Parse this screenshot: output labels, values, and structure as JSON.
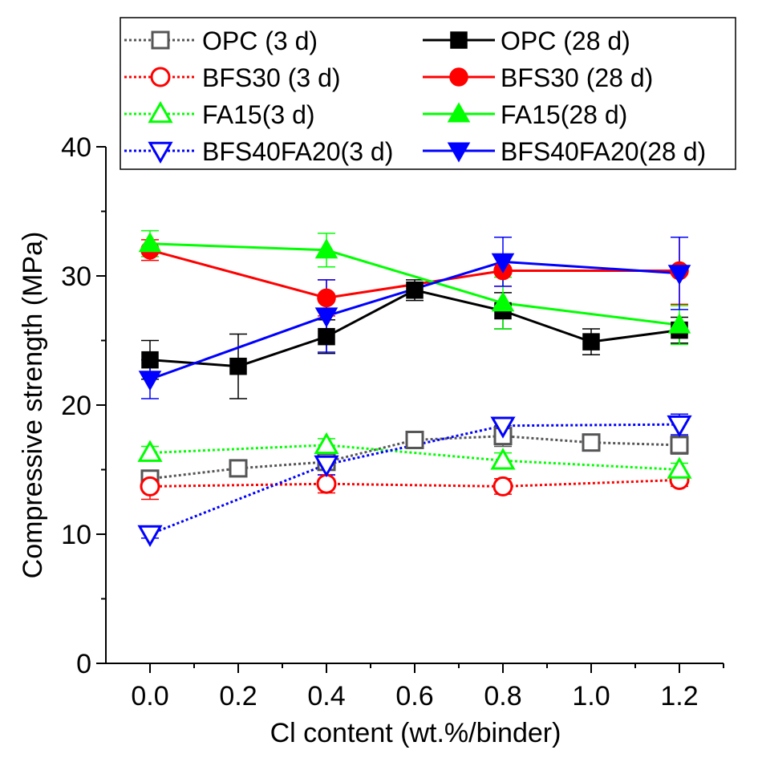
{
  "chart_data": {
    "type": "line",
    "xlabel": "Cl content (wt.%/binder)",
    "ylabel": "Compressive strength (MPa)",
    "xlim": [
      -0.1,
      1.3
    ],
    "ylim": [
      0,
      40
    ],
    "xticks": [
      0.0,
      0.2,
      0.4,
      0.6,
      0.8,
      1.0,
      1.2
    ],
    "xtick_labels": [
      "0.0",
      "0.2",
      "0.4",
      "0.6",
      "0.8",
      "1.0",
      "1.2"
    ],
    "yticks": [
      0,
      10,
      20,
      30,
      40
    ],
    "ytick_labels": [
      "0",
      "10",
      "20",
      "30",
      "40"
    ],
    "grid": false,
    "legend_position": "top-right",
    "series": [
      {
        "name": "OPC (3 d)",
        "color": "#555555",
        "marker": "square",
        "filled": false,
        "dashed": true,
        "x": [
          0.0,
          0.2,
          0.4,
          0.6,
          0.8,
          1.0,
          1.2
        ],
        "y": [
          14.3,
          15.1,
          15.6,
          17.3,
          17.6,
          17.1,
          16.9
        ],
        "err": [
          0.5,
          0.5,
          0.5,
          0.5,
          0.8,
          0.5,
          0.7
        ]
      },
      {
        "name": "OPC (28 d)",
        "color": "#000000",
        "marker": "square",
        "filled": true,
        "dashed": false,
        "x": [
          0.0,
          0.2,
          0.4,
          0.6,
          0.8,
          1.0,
          1.2
        ],
        "y": [
          23.5,
          23.0,
          25.3,
          28.9,
          27.3,
          24.9,
          25.8
        ],
        "err": [
          1.5,
          2.5,
          1.3,
          0.8,
          1.4,
          1.0,
          1.0
        ]
      },
      {
        "name": "BFS30 (3 d)",
        "color": "#ff0000",
        "marker": "circle",
        "filled": false,
        "dashed": true,
        "x": [
          0.0,
          0.4,
          0.8,
          1.2
        ],
        "y": [
          13.7,
          13.9,
          13.7,
          14.2
        ],
        "err": [
          1.0,
          0.7,
          0.6,
          0.5
        ]
      },
      {
        "name": "BFS30 (28 d)",
        "color": "#ff0000",
        "marker": "circle",
        "filled": true,
        "dashed": false,
        "x": [
          0.0,
          0.4,
          0.8,
          1.2
        ],
        "y": [
          32.0,
          28.3,
          30.4,
          30.4
        ],
        "err": [
          0.8,
          1.4,
          1.2,
          2.6
        ]
      },
      {
        "name": "FA15(3 d)",
        "color": "#00ff00",
        "marker": "triangle-up",
        "filled": false,
        "dashed": true,
        "x": [
          0.0,
          0.4,
          0.8,
          1.2
        ],
        "y": [
          16.3,
          16.9,
          15.7,
          15.0
        ],
        "err": [
          0.5,
          0.5,
          0.6,
          0.5
        ]
      },
      {
        "name": "FA15(28 d)",
        "color": "#00ff00",
        "marker": "triangle-up",
        "filled": true,
        "dashed": false,
        "x": [
          0.0,
          0.4,
          0.8,
          1.2
        ],
        "y": [
          32.5,
          32.0,
          27.9,
          26.2
        ],
        "err": [
          1.0,
          1.3,
          2.0,
          1.5
        ]
      },
      {
        "name": "BFS40FA20(3 d)",
        "color": "#0000ff",
        "marker": "triangle-down",
        "filled": false,
        "dashed": true,
        "x": [
          0.0,
          0.4,
          0.8,
          1.2
        ],
        "y": [
          10.0,
          15.4,
          18.4,
          18.5
        ],
        "err": [
          0.3,
          0.8,
          0.5,
          0.8
        ]
      },
      {
        "name": "BFS40FA20(28 d)",
        "color": "#0000ff",
        "marker": "triangle-down",
        "filled": true,
        "dashed": false,
        "x": [
          0.0,
          0.4,
          0.8,
          1.2
        ],
        "y": [
          22.0,
          26.9,
          31.1,
          30.2
        ],
        "err": [
          1.5,
          2.8,
          1.9,
          2.8
        ]
      }
    ]
  }
}
